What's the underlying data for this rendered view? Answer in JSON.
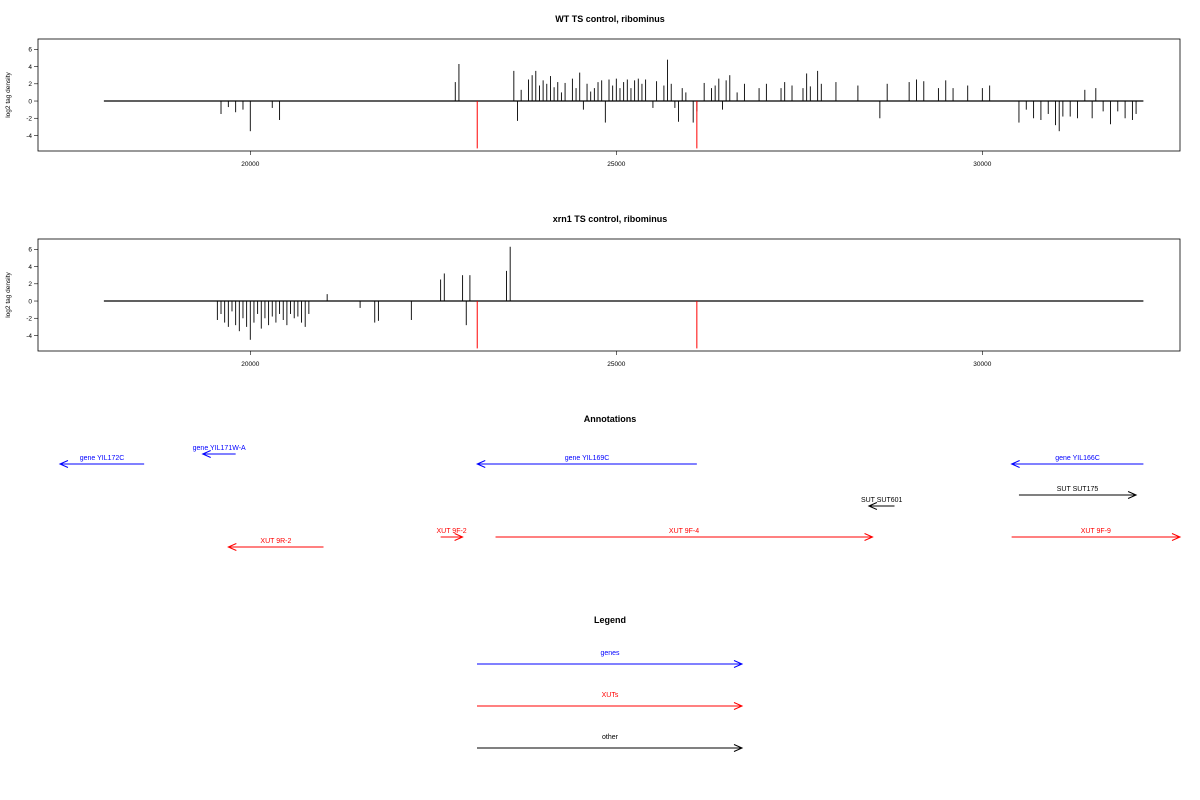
{
  "chart_data": [
    {
      "type": "bar",
      "title": "WT TS control, ribominus",
      "xlabel": "",
      "ylabel": "log2 tag density",
      "xlim": [
        17100,
        32700
      ],
      "ylim": [
        -5.8,
        7.2
      ],
      "xticks": [
        20000,
        25000,
        30000
      ],
      "yticks": [
        6,
        4,
        2,
        0,
        -2,
        -4
      ],
      "baseline_range": [
        18000,
        32200
      ],
      "marker_lines": [
        {
          "x": 23100,
          "y0": 0,
          "y1": -5.5,
          "color": "#ff0000"
        },
        {
          "x": 26100,
          "y0": 0,
          "y1": -5.5,
          "color": "#ff0000"
        }
      ],
      "series": [
        {
          "values": [
            [
              19600,
              -1.5
            ],
            [
              19700,
              -0.7
            ],
            [
              19800,
              -1.3
            ],
            [
              19900,
              -1.0
            ],
            [
              20000,
              -3.5
            ],
            [
              20300,
              -0.8
            ],
            [
              20400,
              -2.2
            ],
            [
              22800,
              2.2
            ],
            [
              22850,
              4.3
            ],
            [
              23600,
              3.5
            ],
            [
              23650,
              -2.3
            ],
            [
              23700,
              1.3
            ],
            [
              23800,
              2.5
            ],
            [
              23850,
              3.0
            ],
            [
              23900,
              3.5
            ],
            [
              23950,
              1.8
            ],
            [
              24000,
              2.4
            ],
            [
              24050,
              2.0
            ],
            [
              24100,
              2.9
            ],
            [
              24150,
              1.6
            ],
            [
              24200,
              2.2
            ],
            [
              24250,
              1.0
            ],
            [
              24300,
              2.1
            ],
            [
              24400,
              2.6
            ],
            [
              24450,
              1.5
            ],
            [
              24500,
              3.3
            ],
            [
              24550,
              -1.0
            ],
            [
              24600,
              2.0
            ],
            [
              24650,
              1.1
            ],
            [
              24700,
              1.5
            ],
            [
              24750,
              2.2
            ],
            [
              24800,
              2.4
            ],
            [
              24850,
              -2.5
            ],
            [
              24900,
              2.5
            ],
            [
              24950,
              1.8
            ],
            [
              25000,
              2.6
            ],
            [
              25050,
              1.5
            ],
            [
              25100,
              2.2
            ],
            [
              25150,
              2.5
            ],
            [
              25200,
              1.5
            ],
            [
              25250,
              2.4
            ],
            [
              25300,
              2.6
            ],
            [
              25350,
              2.0
            ],
            [
              25400,
              2.5
            ],
            [
              25500,
              -0.8
            ],
            [
              25550,
              2.3
            ],
            [
              25650,
              1.8
            ],
            [
              25700,
              4.8
            ],
            [
              25750,
              2.0
            ],
            [
              25800,
              -0.8
            ],
            [
              25850,
              -2.4
            ],
            [
              25900,
              1.5
            ],
            [
              25950,
              1.0
            ],
            [
              26050,
              -2.5
            ],
            [
              26100,
              -1.2
            ],
            [
              26200,
              2.1
            ],
            [
              26300,
              1.5
            ],
            [
              26350,
              1.8
            ],
            [
              26400,
              2.6
            ],
            [
              26450,
              -1.0
            ],
            [
              26500,
              2.4
            ],
            [
              26550,
              3.0
            ],
            [
              26650,
              1.0
            ],
            [
              26750,
              2.0
            ],
            [
              26950,
              1.5
            ],
            [
              27050,
              2.0
            ],
            [
              27250,
              1.5
            ],
            [
              27300,
              2.2
            ],
            [
              27400,
              1.8
            ],
            [
              27550,
              1.5
            ],
            [
              27600,
              3.2
            ],
            [
              27650,
              1.7
            ],
            [
              27750,
              3.5
            ],
            [
              27800,
              2.0
            ],
            [
              28000,
              2.2
            ],
            [
              28300,
              1.8
            ],
            [
              28600,
              -2.0
            ],
            [
              28700,
              2.0
            ],
            [
              29000,
              2.2
            ],
            [
              29100,
              2.5
            ],
            [
              29200,
              2.3
            ],
            [
              29400,
              1.5
            ],
            [
              29500,
              2.4
            ],
            [
              29600,
              1.5
            ],
            [
              29800,
              1.8
            ],
            [
              30000,
              1.5
            ],
            [
              30100,
              1.8
            ],
            [
              30500,
              -2.5
            ],
            [
              30600,
              -1.0
            ],
            [
              30700,
              -2.0
            ],
            [
              30800,
              -2.2
            ],
            [
              30900,
              -1.5
            ],
            [
              31000,
              -2.8
            ],
            [
              31050,
              -3.5
            ],
            [
              31100,
              -1.8
            ],
            [
              31200,
              -1.8
            ],
            [
              31300,
              -2.0
            ],
            [
              31400,
              1.3
            ],
            [
              31500,
              -2.0
            ],
            [
              31550,
              1.5
            ],
            [
              31650,
              -1.2
            ],
            [
              31750,
              -2.7
            ],
            [
              31850,
              -1.2
            ],
            [
              31950,
              -2.0
            ],
            [
              32050,
              -2.2
            ],
            [
              32100,
              -1.5
            ]
          ]
        }
      ]
    },
    {
      "type": "bar",
      "title": "xrn1 TS control, ribominus",
      "xlabel": "",
      "ylabel": "log2 tag density",
      "xlim": [
        17100,
        32700
      ],
      "ylim": [
        -5.8,
        7.2
      ],
      "xticks": [
        20000,
        25000,
        30000
      ],
      "yticks": [
        6,
        4,
        2,
        0,
        -2,
        -4
      ],
      "baseline_range": [
        18000,
        32200
      ],
      "marker_lines": [
        {
          "x": 23100,
          "y0": 0,
          "y1": -5.5,
          "color": "#ff0000"
        },
        {
          "x": 26100,
          "y0": 0,
          "y1": -5.5,
          "color": "#ff0000"
        }
      ],
      "series": [
        {
          "values": [
            [
              19550,
              -2.2
            ],
            [
              19600,
              -1.5
            ],
            [
              19650,
              -2.5
            ],
            [
              19700,
              -3.0
            ],
            [
              19750,
              -1.2
            ],
            [
              19800,
              -2.8
            ],
            [
              19850,
              -3.5
            ],
            [
              19900,
              -2.0
            ],
            [
              19950,
              -3.0
            ],
            [
              20000,
              -4.5
            ],
            [
              20050,
              -2.5
            ],
            [
              20100,
              -1.5
            ],
            [
              20150,
              -3.2
            ],
            [
              20200,
              -2.0
            ],
            [
              20250,
              -2.8
            ],
            [
              20300,
              -1.8
            ],
            [
              20350,
              -2.5
            ],
            [
              20400,
              -1.5
            ],
            [
              20450,
              -2.2
            ],
            [
              20500,
              -2.8
            ],
            [
              20550,
              -1.5
            ],
            [
              20600,
              -2.0
            ],
            [
              20650,
              -1.8
            ],
            [
              20700,
              -2.5
            ],
            [
              20750,
              -3.0
            ],
            [
              20800,
              -1.5
            ],
            [
              21050,
              0.8
            ],
            [
              21500,
              -0.8
            ],
            [
              21700,
              -2.5
            ],
            [
              21750,
              -2.3
            ],
            [
              22200,
              -2.2
            ],
            [
              22600,
              2.5
            ],
            [
              22650,
              3.2
            ],
            [
              22900,
              3.0
            ],
            [
              22950,
              -2.8
            ],
            [
              23000,
              3.0
            ],
            [
              23500,
              3.5
            ],
            [
              23550,
              6.3
            ]
          ]
        }
      ]
    }
  ],
  "annotations": {
    "title": "Annotations",
    "xlim": [
      17100,
      32700
    ],
    "colors": {
      "genes": "#0000ff",
      "xuts": "#ff0000",
      "other": "#000000"
    },
    "features": [
      {
        "label": "gene YIL172C",
        "x_start": 18550,
        "x_end": 17400,
        "row": 1,
        "color": "#0000ff"
      },
      {
        "label": "gene YIL171W-A",
        "x_start": 19800,
        "x_end": 19350,
        "row": 0,
        "color": "#0000ff"
      },
      {
        "label": "gene YIL169C",
        "x_start": 26100,
        "x_end": 23100,
        "row": 1,
        "color": "#0000ff"
      },
      {
        "label": "gene YIL166C",
        "x_start": 32200,
        "x_end": 30400,
        "row": 1,
        "color": "#0000ff"
      },
      {
        "label": "SUT SUT601",
        "x_start": 28800,
        "x_end": 28450,
        "row": 3,
        "color": "#000000"
      },
      {
        "label": "SUT SUT175",
        "x_start": 30500,
        "x_end": 32100,
        "row": 2,
        "color": "#000000"
      },
      {
        "label": "XUT 9R-2",
        "x_start": 21000,
        "x_end": 19700,
        "row": 5,
        "color": "#ff0000"
      },
      {
        "label": "XUT 9F-2",
        "x_start": 22600,
        "x_end": 22900,
        "row": 4,
        "color": "#ff0000"
      },
      {
        "label": "XUT 9F-4",
        "x_start": 23350,
        "x_end": 28500,
        "row": 4,
        "color": "#ff0000"
      },
      {
        "label": "XUT 9F-9",
        "x_start": 30400,
        "x_end": 32700,
        "row": 4,
        "color": "#ff0000"
      }
    ]
  },
  "legend": {
    "title": "Legend",
    "items": [
      {
        "label": "genes",
        "color": "#0000ff"
      },
      {
        "label": "XUTs",
        "color": "#ff0000"
      },
      {
        "label": "other",
        "color": "#000000"
      }
    ]
  }
}
